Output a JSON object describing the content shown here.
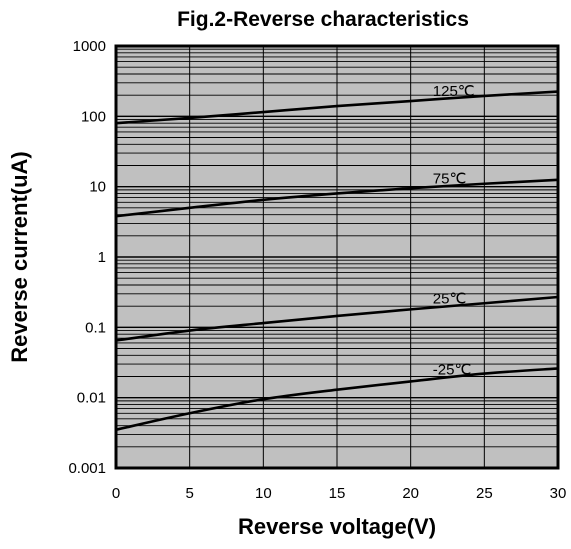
{
  "chart_data": {
    "type": "line",
    "title": "Fig.2-Reverse characteristics",
    "xlabel": "Reverse voltage(V)",
    "ylabel": "Reverse current(uA)",
    "xlim": [
      0,
      30
    ],
    "ylim": [
      0.001,
      1000
    ],
    "y_scale": "log",
    "grid": true,
    "legend": "none",
    "plot_background": "#c0c0c0",
    "line_color": "#000000",
    "x_ticks": [
      "0",
      "5",
      "10",
      "15",
      "20",
      "25",
      "30"
    ],
    "y_ticks": [
      "0.001",
      "0.01",
      "0.1",
      "1",
      "10",
      "100",
      "1000"
    ],
    "series": [
      {
        "label": "125℃",
        "x": [
          0,
          5,
          10,
          15,
          20,
          25,
          30
        ],
        "y": [
          80,
          95,
          115,
          140,
          165,
          195,
          225
        ]
      },
      {
        "label": "75℃",
        "x": [
          0,
          5,
          10,
          15,
          20,
          25,
          30
        ],
        "y": [
          3.8,
          5,
          6.5,
          8,
          9.5,
          11,
          12.5
        ]
      },
      {
        "label": "25℃",
        "x": [
          0,
          5,
          10,
          15,
          20,
          25,
          30
        ],
        "y": [
          0.065,
          0.09,
          0.115,
          0.145,
          0.18,
          0.22,
          0.27
        ]
      },
      {
        "label": "-25℃",
        "x": [
          0,
          5,
          10,
          15,
          20,
          25,
          30
        ],
        "y": [
          0.0035,
          0.006,
          0.0095,
          0.013,
          0.017,
          0.022,
          0.026
        ]
      }
    ]
  }
}
